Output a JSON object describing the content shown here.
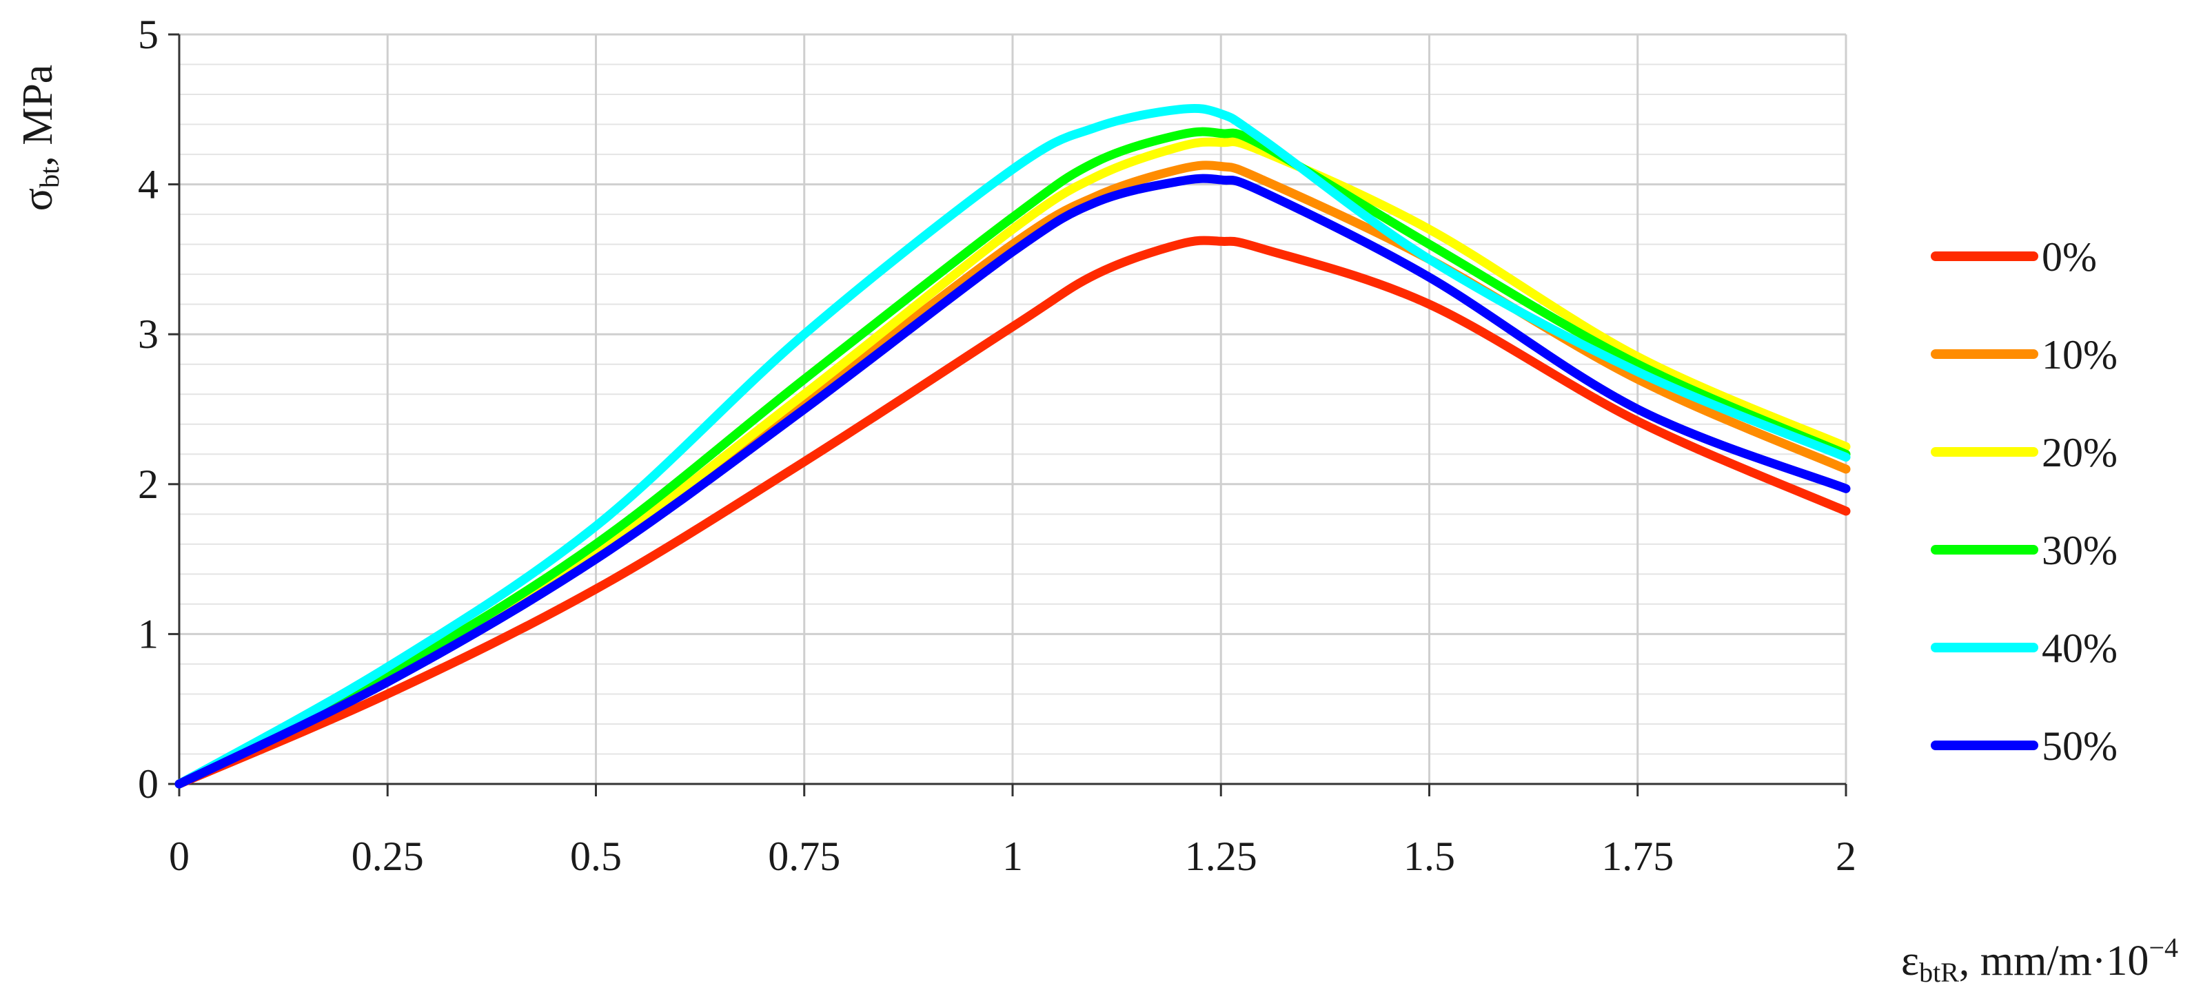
{
  "chart_data": {
    "type": "line",
    "xlabel": {
      "main": "ε",
      "sub": "btR",
      "tail": ", mm/m·10",
      "sup": "−4"
    },
    "ylabel": {
      "main": "σ",
      "sub": "bt",
      "tail": ", MPa"
    },
    "xlim": [
      0,
      2
    ],
    "ylim": [
      0,
      5
    ],
    "x_ticks": [
      "0",
      "0.25",
      "0.5",
      "0.75",
      "1",
      "1.25",
      "1.5",
      "1.75",
      "2"
    ],
    "y_ticks": [
      "0",
      "1",
      "2",
      "3",
      "4",
      "5"
    ],
    "grid": true,
    "legend_position": "right",
    "x": [
      0,
      0.25,
      0.5,
      0.75,
      1,
      1.1,
      1.2,
      1.25,
      1.3,
      1.5,
      1.75,
      2
    ],
    "series": [
      {
        "name": "0%",
        "color": "#ff2a00",
        "values": [
          0,
          0.6,
          1.3,
          2.15,
          3.05,
          3.4,
          3.6,
          3.62,
          3.57,
          3.2,
          2.42,
          1.82
        ]
      },
      {
        "name": "10%",
        "color": "#ff8c00",
        "values": [
          0,
          0.7,
          1.52,
          2.55,
          3.6,
          3.92,
          4.1,
          4.12,
          4.03,
          3.5,
          2.7,
          2.1
        ]
      },
      {
        "name": "20%",
        "color": "#ffff00",
        "values": [
          0,
          0.72,
          1.55,
          2.6,
          3.7,
          4.05,
          4.25,
          4.28,
          4.22,
          3.7,
          2.85,
          2.25
        ]
      },
      {
        "name": "30%",
        "color": "#00ff00",
        "values": [
          0,
          0.73,
          1.6,
          2.7,
          3.78,
          4.15,
          4.33,
          4.34,
          4.26,
          3.6,
          2.8,
          2.2
        ]
      },
      {
        "name": "40%",
        "color": "#00ffff",
        "values": [
          0,
          0.78,
          1.72,
          3.0,
          4.1,
          4.38,
          4.5,
          4.47,
          4.3,
          3.5,
          2.75,
          2.18
        ]
      },
      {
        "name": "50%",
        "color": "#0000ff",
        "values": [
          0,
          0.68,
          1.5,
          2.5,
          3.55,
          3.88,
          4.02,
          4.03,
          3.95,
          3.38,
          2.5,
          1.97
        ]
      }
    ]
  }
}
